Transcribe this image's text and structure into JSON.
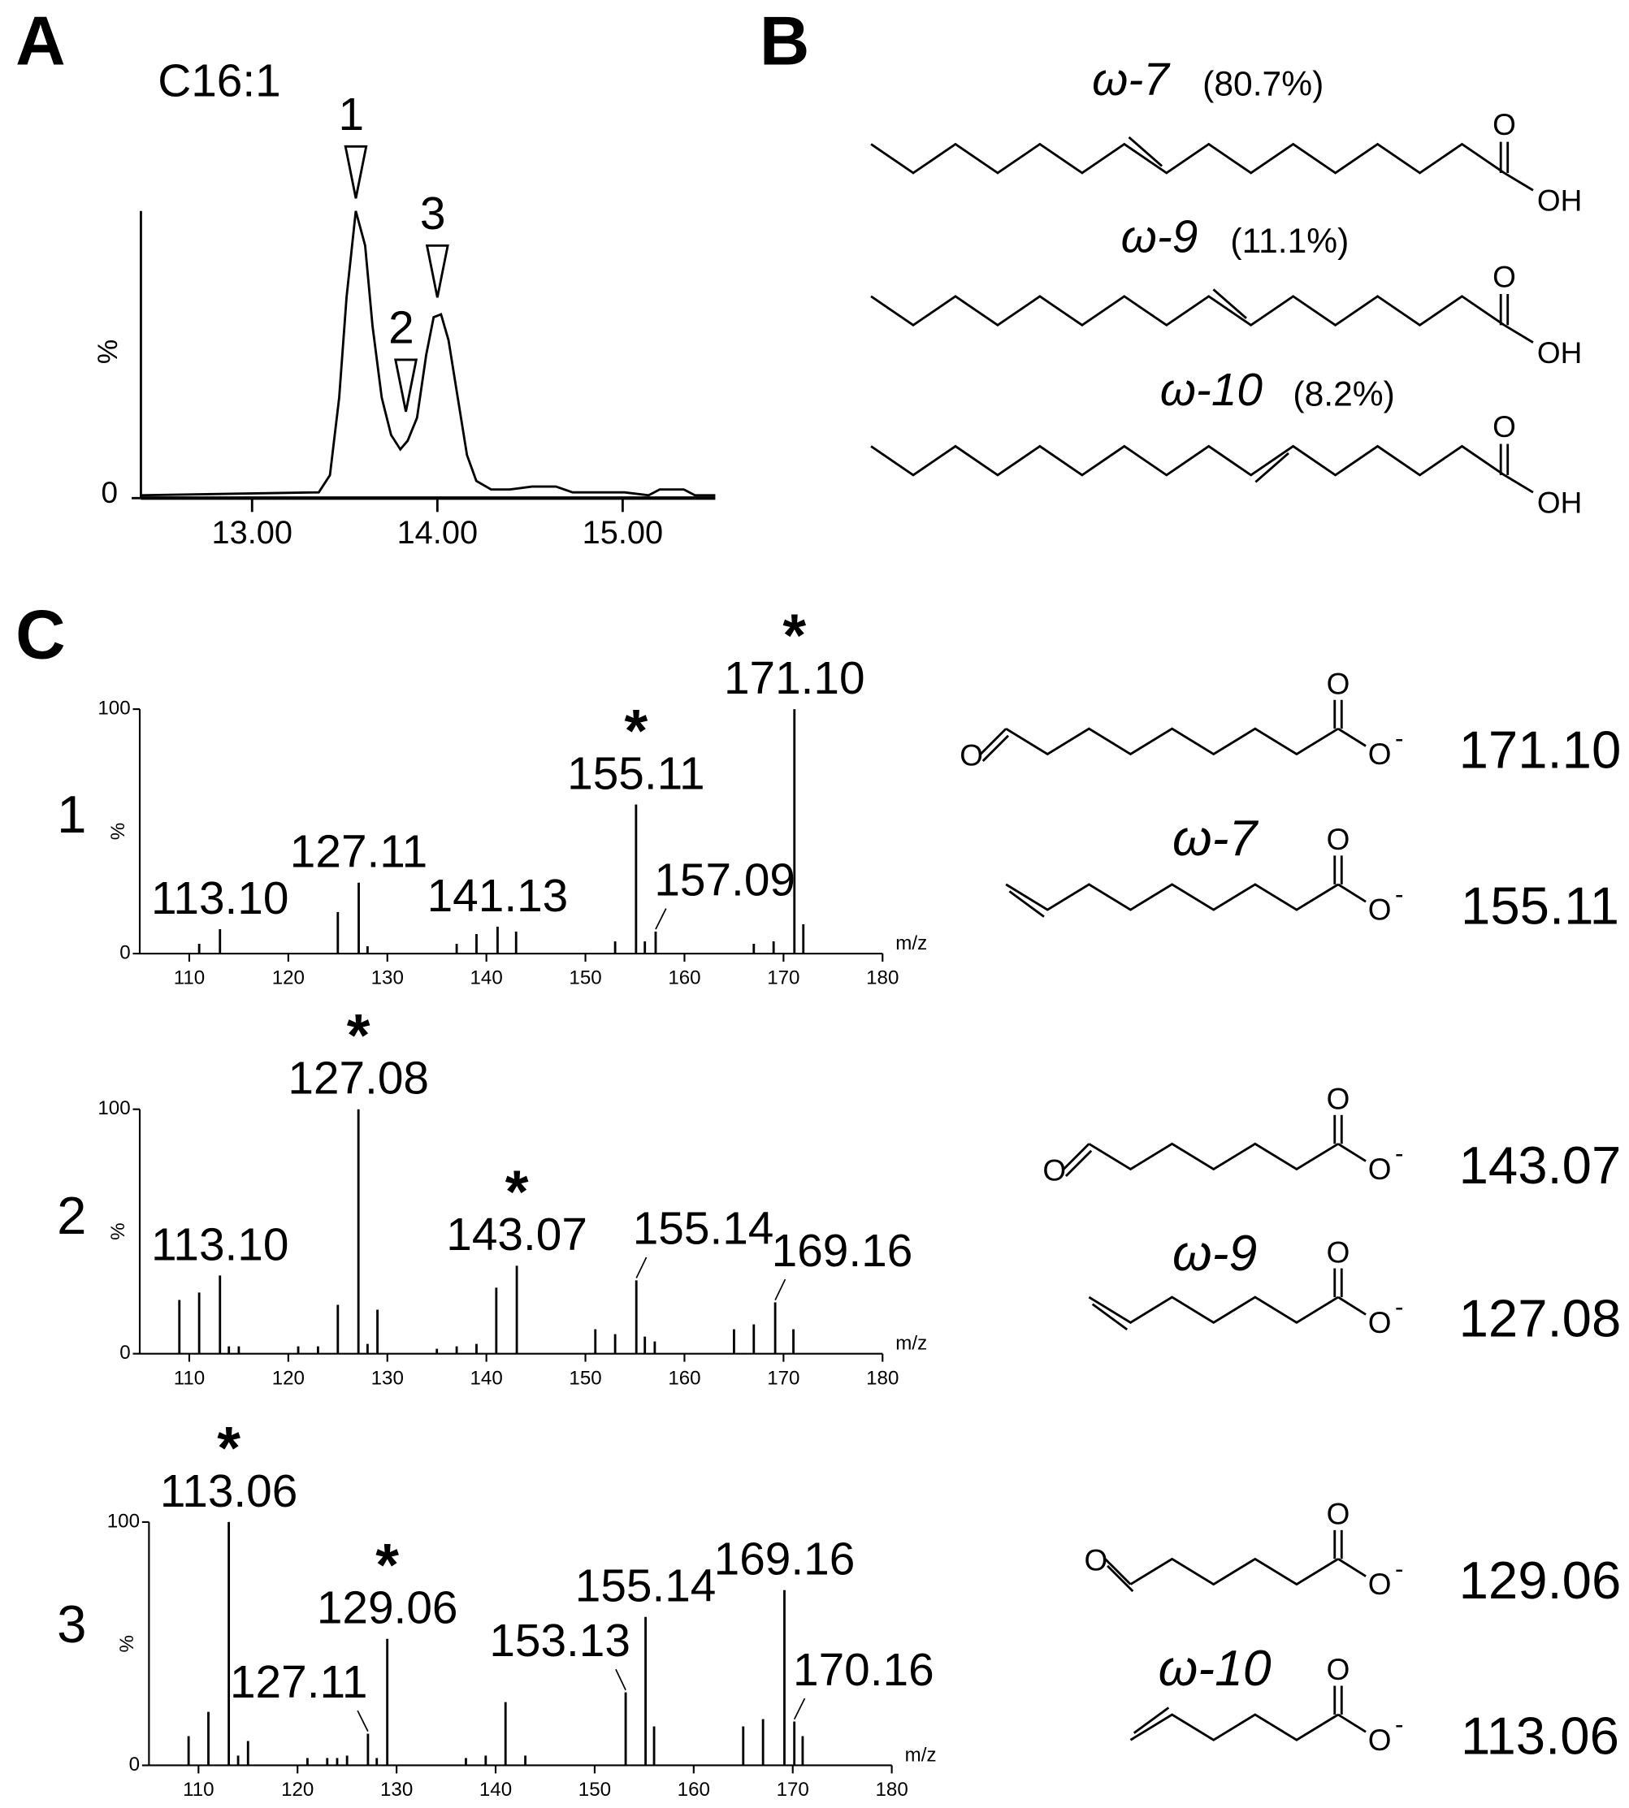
{
  "panels": [
    "A",
    "B",
    "C"
  ],
  "atoms": {
    "O": "O",
    "OH": "OH",
    "charge": "-"
  },
  "structures_b": [
    {
      "name": "ω-7",
      "share": "(80.7%)"
    },
    {
      "name": "ω-9",
      "share": "(11.1%)"
    },
    {
      "name": "ω-10",
      "share": "(8.2%)"
    }
  ],
  "structures_c": [
    {
      "name": "ω-7",
      "ions": [
        "171.10",
        "155.11"
      ]
    },
    {
      "name": "ω-9",
      "ions": [
        "143.07",
        "127.08"
      ]
    },
    {
      "name": "ω-10",
      "ions": [
        "129.06",
        "113.06"
      ]
    }
  ],
  "chart_data": [
    {
      "type": "line",
      "title": "C16:1",
      "y_label": "%",
      "color": "#000000",
      "x": [
        12.4,
        13.36,
        13.42,
        13.47,
        13.51,
        13.56,
        13.61,
        13.65,
        13.7,
        13.75,
        13.8,
        13.84,
        13.89,
        13.94,
        13.98,
        14.02,
        14.06,
        14.11,
        14.16,
        14.21,
        14.29,
        14.39,
        14.51,
        14.64,
        14.73,
        15.01,
        15.14,
        15.2,
        15.33,
        15.39,
        15.5
      ],
      "values": [
        1,
        2,
        8,
        35,
        70,
        100,
        88,
        60,
        35,
        22,
        17,
        20,
        28,
        50,
        63,
        64,
        55,
        35,
        15,
        6,
        3,
        3,
        4,
        4,
        2,
        2,
        1,
        3,
        3,
        1,
        1
      ],
      "xlim": [
        12.4,
        15.5
      ],
      "ylim": [
        0,
        100
      ],
      "xticks": [
        {
          "value": 13,
          "label": "13.00"
        },
        {
          "value": 14,
          "label": "14.00"
        },
        {
          "value": 15,
          "label": "15.00"
        }
      ],
      "yticks": [
        0
      ],
      "annotations": [
        {
          "text": "1",
          "x": 13.56
        },
        {
          "text": "2",
          "x": 13.83
        },
        {
          "text": "3",
          "x": 14.0
        }
      ]
    },
    {
      "type": "stick",
      "name": "1",
      "x_label": "m/z",
      "y_label": "%",
      "color": "#000000",
      "star": "*",
      "star_color": "#e8141c",
      "x": [
        111,
        113.1,
        125,
        127.11,
        128,
        137,
        139,
        141.13,
        143,
        153,
        155.11,
        156,
        157.09,
        167,
        169,
        171.1,
        172
      ],
      "values": [
        4,
        10,
        17,
        29,
        3,
        4,
        8,
        11,
        9,
        5,
        61,
        5,
        9,
        4,
        5,
        100,
        12
      ],
      "x_labels": [
        null,
        "113.10",
        null,
        "127.11",
        null,
        null,
        null,
        "141.13",
        null,
        null,
        "155.11",
        null,
        "157.09",
        null,
        null,
        "171.10",
        null
      ],
      "starred": [
        false,
        false,
        false,
        false,
        false,
        false,
        false,
        false,
        false,
        false,
        true,
        false,
        false,
        false,
        false,
        true,
        false
      ],
      "xlim": [
        105,
        180
      ],
      "ylim": [
        0,
        100
      ],
      "xticks": [
        110,
        120,
        130,
        140,
        150,
        160,
        170,
        180
      ],
      "yticks": [
        0,
        100
      ]
    },
    {
      "type": "stick",
      "name": "2",
      "x_label": "m/z",
      "y_label": "%",
      "color": "#000000",
      "star": "*",
      "star_color": "#e8141c",
      "x": [
        109,
        111,
        113.1,
        114,
        115,
        121,
        123,
        125,
        127.08,
        128,
        129,
        135,
        137,
        139,
        141,
        143.07,
        151,
        153,
        155.14,
        156,
        157,
        165,
        167,
        169.16,
        171
      ],
      "values": [
        22,
        25,
        32,
        3,
        3,
        3,
        3,
        20,
        100,
        4,
        18,
        2,
        3,
        4,
        27,
        36,
        10,
        8,
        30,
        7,
        5,
        10,
        12,
        21,
        10
      ],
      "x_labels": [
        null,
        null,
        "113.10",
        null,
        null,
        null,
        null,
        null,
        "127.08",
        null,
        null,
        null,
        null,
        null,
        null,
        "143.07",
        null,
        null,
        "155.14",
        null,
        null,
        null,
        null,
        "169.16",
        null
      ],
      "starred": [
        false,
        false,
        false,
        false,
        false,
        false,
        false,
        false,
        true,
        false,
        false,
        false,
        false,
        false,
        false,
        true,
        false,
        false,
        false,
        false,
        false,
        false,
        false,
        false,
        false
      ],
      "xlim": [
        105,
        180
      ],
      "ylim": [
        0,
        100
      ],
      "xticks": [
        110,
        120,
        130,
        140,
        150,
        160,
        170,
        180
      ],
      "yticks": [
        0,
        100
      ]
    },
    {
      "type": "stick",
      "name": "3",
      "x_label": "m/z",
      "y_label": "%",
      "color": "#000000",
      "star": "*",
      "star_color": "#e8141c",
      "x": [
        109,
        111,
        113.06,
        114,
        115,
        121,
        123,
        124,
        125,
        127.11,
        128,
        129.06,
        137,
        139,
        141,
        143,
        153.13,
        155.14,
        156,
        165,
        167,
        169.16,
        170.16,
        171
      ],
      "values": [
        12,
        22,
        100,
        4,
        10,
        3,
        3,
        3,
        4,
        13,
        3,
        52,
        3,
        4,
        26,
        4,
        30,
        61,
        16,
        16,
        19,
        72,
        18,
        12
      ],
      "x_labels": [
        null,
        null,
        "113.06",
        null,
        null,
        null,
        null,
        null,
        null,
        "127.11",
        null,
        "129.06",
        null,
        null,
        null,
        null,
        "153.13",
        "155.14",
        null,
        null,
        null,
        "169.16",
        "170.16",
        null
      ],
      "starred": [
        false,
        false,
        true,
        false,
        false,
        false,
        false,
        false,
        false,
        false,
        false,
        true,
        false,
        false,
        false,
        false,
        false,
        false,
        false,
        false,
        false,
        false,
        false,
        false
      ],
      "xlim": [
        105,
        180
      ],
      "ylim": [
        0,
        100
      ],
      "xticks": [
        110,
        120,
        130,
        140,
        150,
        160,
        170,
        180
      ],
      "yticks": [
        0,
        100
      ]
    }
  ]
}
